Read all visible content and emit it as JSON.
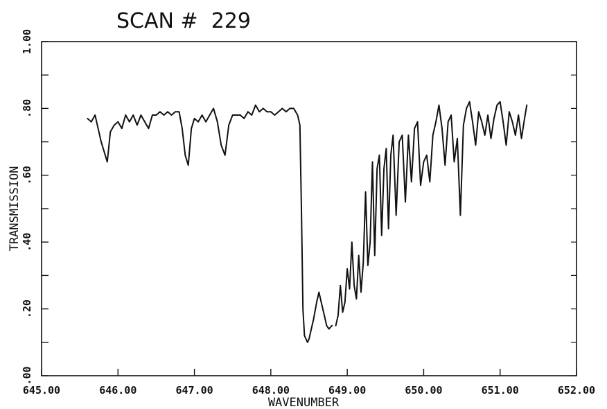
{
  "chart_data": {
    "type": "line",
    "title": "SCAN #  229",
    "xlabel": "WAVENUMBER",
    "ylabel": "TRANSMISSION",
    "xlim": [
      645.0,
      652.0
    ],
    "ylim": [
      0.0,
      1.0
    ],
    "x_tick_labels": [
      "645.00",
      "646.00",
      "647.00",
      "648.00",
      "649.00",
      "650.00",
      "651.00",
      "652.00"
    ],
    "y_tick_labels": [
      ".00",
      ".20",
      ".40",
      ".60",
      ".80",
      "1.00"
    ],
    "grid": false,
    "legend": "none",
    "line_color": "#111111",
    "series": [
      {
        "x": [
          645.6,
          645.65,
          645.7,
          645.74,
          645.78,
          645.82,
          645.86,
          645.9,
          645.95,
          646.0,
          646.05,
          646.1,
          646.15,
          646.2,
          646.25,
          646.3,
          646.35,
          646.4,
          646.45,
          646.5,
          646.55,
          646.6,
          646.65,
          646.7,
          646.75,
          646.8,
          646.84,
          646.88,
          646.92,
          646.96,
          647.0,
          647.05,
          647.1,
          647.15,
          647.2,
          647.25,
          647.3,
          647.35,
          647.4,
          647.45,
          647.5,
          647.55,
          647.6,
          647.65,
          647.7,
          647.75,
          647.8,
          647.85,
          647.9,
          647.95,
          648.0,
          648.05,
          648.1,
          648.15,
          648.2,
          648.25,
          648.3,
          648.35,
          648.38,
          648.4,
          648.42,
          648.44,
          648.46,
          648.48,
          648.5,
          648.53,
          648.56,
          648.6,
          648.63,
          648.66,
          648.7,
          648.73,
          648.76,
          648.8
        ],
        "y": [
          0.77,
          0.76,
          0.78,
          0.74,
          0.7,
          0.67,
          0.64,
          0.73,
          0.75,
          0.76,
          0.74,
          0.78,
          0.76,
          0.78,
          0.75,
          0.78,
          0.76,
          0.74,
          0.78,
          0.78,
          0.79,
          0.78,
          0.79,
          0.78,
          0.79,
          0.79,
          0.74,
          0.66,
          0.63,
          0.74,
          0.77,
          0.76,
          0.78,
          0.76,
          0.78,
          0.8,
          0.76,
          0.69,
          0.66,
          0.75,
          0.78,
          0.78,
          0.78,
          0.77,
          0.79,
          0.78,
          0.81,
          0.79,
          0.8,
          0.79,
          0.79,
          0.78,
          0.79,
          0.8,
          0.79,
          0.8,
          0.8,
          0.78,
          0.75,
          0.5,
          0.2,
          0.12,
          0.11,
          0.1,
          0.11,
          0.14,
          0.17,
          0.22,
          0.25,
          0.22,
          0.18,
          0.15,
          0.14,
          0.15
        ]
      },
      {
        "x": [
          648.85,
          648.88,
          648.91,
          648.94,
          648.97,
          649.0,
          649.03,
          649.06,
          649.09,
          649.12,
          649.15,
          649.18,
          649.21,
          649.24,
          649.27,
          649.3,
          649.33,
          649.36,
          649.39,
          649.42,
          649.45,
          649.48,
          649.51,
          649.54,
          649.57,
          649.6,
          649.64,
          649.68,
          649.72,
          649.76,
          649.8,
          649.84,
          649.88,
          649.92,
          649.96,
          650.0,
          650.04,
          650.08,
          650.12,
          650.16,
          650.2,
          650.24,
          650.28,
          650.32,
          650.36,
          650.4,
          650.44,
          650.48,
          650.52,
          650.56,
          650.6,
          650.64,
          650.68,
          650.72,
          650.76,
          650.8,
          650.84,
          650.88,
          650.92,
          650.96,
          651.0,
          651.04,
          651.08,
          651.12,
          651.16,
          651.2,
          651.24,
          651.28,
          651.32,
          651.35
        ],
        "y": [
          0.15,
          0.18,
          0.27,
          0.19,
          0.22,
          0.32,
          0.26,
          0.4,
          0.27,
          0.23,
          0.36,
          0.25,
          0.34,
          0.55,
          0.33,
          0.4,
          0.64,
          0.36,
          0.62,
          0.66,
          0.42,
          0.62,
          0.68,
          0.44,
          0.66,
          0.72,
          0.48,
          0.7,
          0.72,
          0.52,
          0.72,
          0.58,
          0.74,
          0.76,
          0.57,
          0.64,
          0.66,
          0.58,
          0.72,
          0.76,
          0.81,
          0.74,
          0.63,
          0.76,
          0.78,
          0.64,
          0.71,
          0.48,
          0.75,
          0.8,
          0.82,
          0.76,
          0.69,
          0.79,
          0.76,
          0.72,
          0.78,
          0.71,
          0.77,
          0.81,
          0.82,
          0.76,
          0.69,
          0.79,
          0.76,
          0.72,
          0.78,
          0.71,
          0.77,
          0.81
        ]
      }
    ]
  }
}
